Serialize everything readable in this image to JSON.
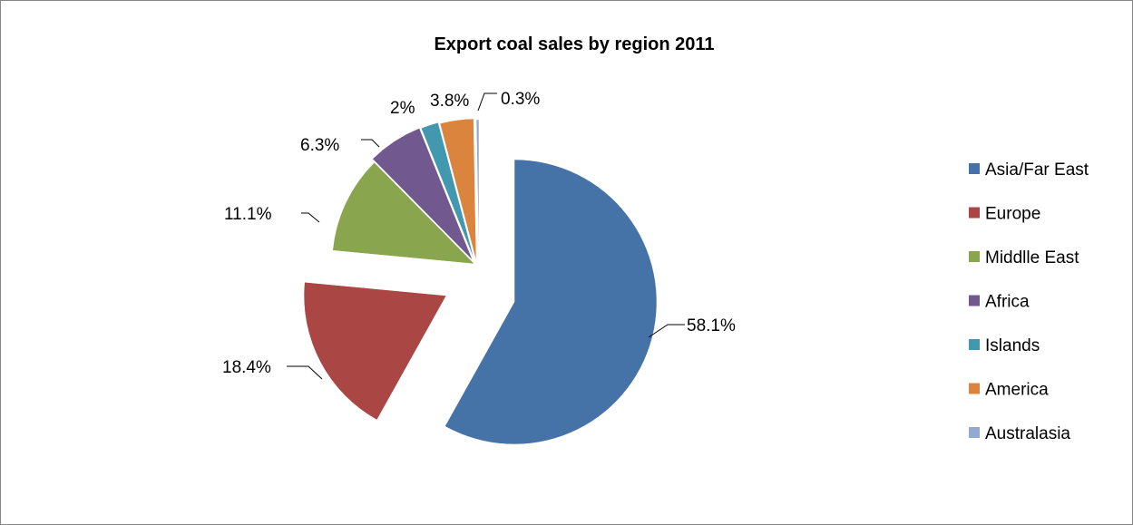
{
  "chart_data": {
    "type": "pie",
    "title": "Export coal sales by region 2011",
    "categories": [
      "Asia/Far East",
      "Europe",
      "Middlle East",
      "Africa",
      "Islands",
      "America",
      "Australasia"
    ],
    "values": [
      58.1,
      18.4,
      11.1,
      6.3,
      2,
      3.8,
      0.3
    ],
    "value_labels": [
      "58.1%",
      "18.4%",
      "11.1%",
      "6.3%",
      "2%",
      "3.8%",
      "0.3%"
    ],
    "colors": [
      "#4572A7",
      "#AA4643",
      "#89A54E",
      "#71588F",
      "#4198AF",
      "#DB843D",
      "#93A9CF"
    ],
    "exploded": true,
    "legend_position": "right"
  }
}
